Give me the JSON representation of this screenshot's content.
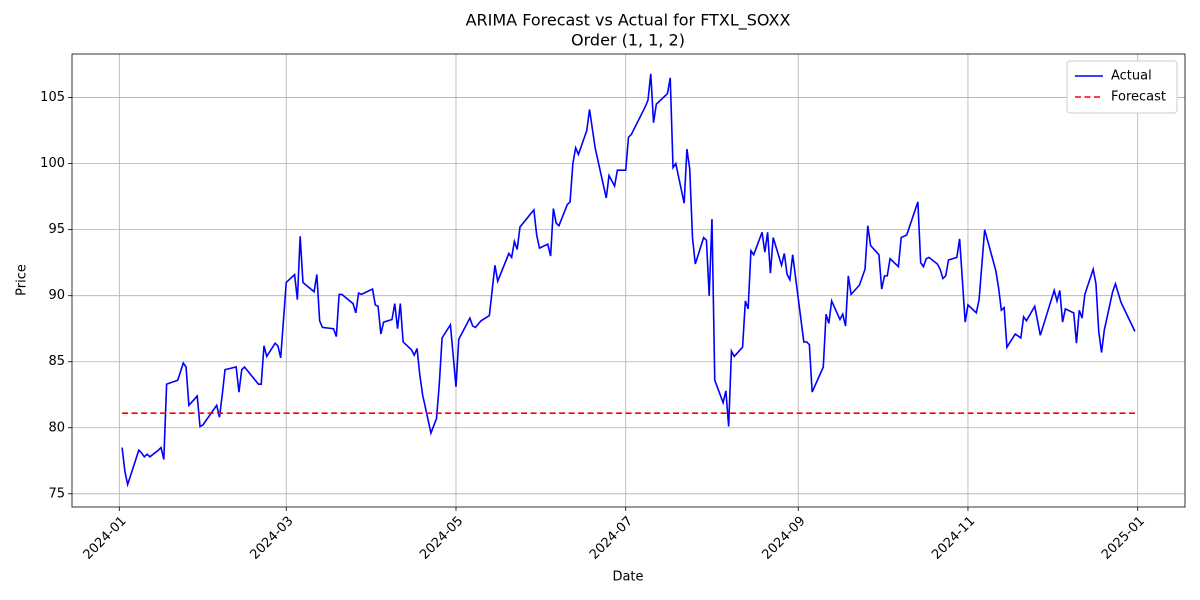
{
  "chart_data": {
    "type": "line",
    "title": "ARIMA Forecast vs Actual for FTXL_SOXX",
    "subtitle": "Order (1, 1, 2)",
    "x_label": "Date",
    "y_label": "Price",
    "xlim": [
      "2023-12-15",
      "2025-01-18"
    ],
    "xticks": [
      {
        "value": "2024-01-01",
        "label": "2024-01"
      },
      {
        "value": "2024-03-01",
        "label": "2024-03"
      },
      {
        "value": "2024-05-01",
        "label": "2024-05"
      },
      {
        "value": "2024-07-01",
        "label": "2024-07"
      },
      {
        "value": "2024-09-01",
        "label": "2024-09"
      },
      {
        "value": "2024-11-01",
        "label": "2024-11"
      },
      {
        "value": "2025-01-01",
        "label": "2025-01"
      }
    ],
    "ylim": [
      74.0,
      108.3
    ],
    "yticks": [
      75,
      80,
      85,
      90,
      95,
      100,
      105
    ],
    "grid": true,
    "legend": "upper right",
    "series": [
      {
        "name": "Actual",
        "color": "#0000ff",
        "dash": false,
        "x": [
          "2024-01-02",
          "2024-01-03",
          "2024-01-04",
          "2024-01-08",
          "2024-01-09",
          "2024-01-10",
          "2024-01-11",
          "2024-01-12",
          "2024-01-15",
          "2024-01-16",
          "2024-01-17",
          "2024-01-18",
          "2024-01-22",
          "2024-01-24",
          "2024-01-25",
          "2024-01-26",
          "2024-01-29",
          "2024-01-30",
          "2024-01-31",
          "2024-02-05",
          "2024-02-06",
          "2024-02-07",
          "2024-02-08",
          "2024-02-12",
          "2024-02-13",
          "2024-02-14",
          "2024-02-15",
          "2024-02-20",
          "2024-02-21",
          "2024-02-22",
          "2024-02-23",
          "2024-02-26",
          "2024-02-27",
          "2024-02-28",
          "2024-03-01",
          "2024-03-04",
          "2024-03-05",
          "2024-03-06",
          "2024-03-07",
          "2024-03-11",
          "2024-03-12",
          "2024-03-13",
          "2024-03-14",
          "2024-03-18",
          "2024-03-19",
          "2024-03-20",
          "2024-03-21",
          "2024-03-25",
          "2024-03-26",
          "2024-03-27",
          "2024-03-28",
          "2024-04-01",
          "2024-04-02",
          "2024-04-03",
          "2024-04-04",
          "2024-04-05",
          "2024-04-08",
          "2024-04-09",
          "2024-04-10",
          "2024-04-11",
          "2024-04-12",
          "2024-04-15",
          "2024-04-16",
          "2024-04-17",
          "2024-04-18",
          "2024-04-19",
          "2024-04-22",
          "2024-04-24",
          "2024-04-25",
          "2024-04-26",
          "2024-04-29",
          "2024-05-01",
          "2024-05-02",
          "2024-05-06",
          "2024-05-07",
          "2024-05-08",
          "2024-05-10",
          "2024-05-13",
          "2024-05-15",
          "2024-05-16",
          "2024-05-20",
          "2024-05-21",
          "2024-05-22",
          "2024-05-23",
          "2024-05-24",
          "2024-05-29",
          "2024-05-30",
          "2024-05-31",
          "2024-06-03",
          "2024-06-04",
          "2024-06-05",
          "2024-06-06",
          "2024-06-07",
          "2024-06-10",
          "2024-06-11",
          "2024-06-12",
          "2024-06-13",
          "2024-06-14",
          "2024-06-17",
          "2024-06-18",
          "2024-06-20",
          "2024-06-24",
          "2024-06-25",
          "2024-06-27",
          "2024-06-28",
          "2024-07-01",
          "2024-07-02",
          "2024-07-03",
          "2024-07-08",
          "2024-07-09",
          "2024-07-10",
          "2024-07-11",
          "2024-07-12",
          "2024-07-15",
          "2024-07-16",
          "2024-07-17",
          "2024-07-18",
          "2024-07-19",
          "2024-07-22",
          "2024-07-23",
          "2024-07-24",
          "2024-07-25",
          "2024-07-26",
          "2024-07-29",
          "2024-07-30",
          "2024-07-31",
          "2024-08-01",
          "2024-08-02",
          "2024-08-05",
          "2024-08-06",
          "2024-08-07",
          "2024-08-08",
          "2024-08-09",
          "2024-08-12",
          "2024-08-13",
          "2024-08-14",
          "2024-08-15",
          "2024-08-16",
          "2024-08-19",
          "2024-08-20",
          "2024-08-21",
          "2024-08-22",
          "2024-08-23",
          "2024-08-26",
          "2024-08-27",
          "2024-08-28",
          "2024-08-29",
          "2024-08-30",
          "2024-09-03",
          "2024-09-04",
          "2024-09-05",
          "2024-09-06",
          "2024-09-10",
          "2024-09-11",
          "2024-09-12",
          "2024-09-13",
          "2024-09-16",
          "2024-09-17",
          "2024-09-18",
          "2024-09-19",
          "2024-09-20",
          "2024-09-23",
          "2024-09-25",
          "2024-09-26",
          "2024-09-27",
          "2024-09-30",
          "2024-10-01",
          "2024-10-02",
          "2024-10-03",
          "2024-10-04",
          "2024-10-07",
          "2024-10-08",
          "2024-10-10",
          "2024-10-14",
          "2024-10-15",
          "2024-10-16",
          "2024-10-17",
          "2024-10-18",
          "2024-10-21",
          "2024-10-22",
          "2024-10-23",
          "2024-10-24",
          "2024-10-25",
          "2024-10-28",
          "2024-10-29",
          "2024-10-31",
          "2024-11-01",
          "2024-11-04",
          "2024-11-05",
          "2024-11-07",
          "2024-11-11",
          "2024-11-12",
          "2024-11-13",
          "2024-11-14",
          "2024-11-15",
          "2024-11-18",
          "2024-11-20",
          "2024-11-21",
          "2024-11-22",
          "2024-11-25",
          "2024-11-27",
          "2024-12-02",
          "2024-12-03",
          "2024-12-04",
          "2024-12-05",
          "2024-12-06",
          "2024-12-09",
          "2024-12-10",
          "2024-12-11",
          "2024-12-12",
          "2024-12-13",
          "2024-12-16",
          "2024-12-17",
          "2024-12-18",
          "2024-12-19",
          "2024-12-20",
          "2024-12-23",
          "2024-12-24",
          "2024-12-26",
          "2024-12-31"
        ],
        "values": [
          78.5,
          76.7,
          75.7,
          78.3,
          78.1,
          77.8,
          78.0,
          77.8,
          78.3,
          78.5,
          77.6,
          83.3,
          83.6,
          84.9,
          84.6,
          81.7,
          82.4,
          80.1,
          80.2,
          81.7,
          80.8,
          82.5,
          84.4,
          84.6,
          82.7,
          84.4,
          84.6,
          83.3,
          83.3,
          86.2,
          85.4,
          86.4,
          86.2,
          85.3,
          91.0,
          91.6,
          89.7,
          94.5,
          91.0,
          90.3,
          91.6,
          88.1,
          87.6,
          87.5,
          86.9,
          90.1,
          90.1,
          89.4,
          88.7,
          90.2,
          90.1,
          90.5,
          89.3,
          89.2,
          87.1,
          88.0,
          88.2,
          89.4,
          87.5,
          89.4,
          86.5,
          85.9,
          85.5,
          86.0,
          84.0,
          82.5,
          79.6,
          80.7,
          83.3,
          86.8,
          87.8,
          83.1,
          86.7,
          88.3,
          87.7,
          87.6,
          88.1,
          88.5,
          92.3,
          91.1,
          93.2,
          92.9,
          94.1,
          93.5,
          95.2,
          96.5,
          94.6,
          93.6,
          93.9,
          93.0,
          96.6,
          95.5,
          95.3,
          96.9,
          97.1,
          100.0,
          101.2,
          100.7,
          102.5,
          104.1,
          101.2,
          97.4,
          99.1,
          98.3,
          99.5,
          99.5,
          102.0,
          102.2,
          104.3,
          104.8,
          106.8,
          103.1,
          104.5,
          105.1,
          105.3,
          106.5,
          99.7,
          100.0,
          97.0,
          101.1,
          99.6,
          94.4,
          92.4,
          94.4,
          94.2,
          90.0,
          95.8,
          83.6,
          81.9,
          82.8,
          80.1,
          85.8,
          85.4,
          86.1,
          89.6,
          89.0,
          93.4,
          93.1,
          94.8,
          93.3,
          94.8,
          91.7,
          94.4,
          92.3,
          93.2,
          91.6,
          91.2,
          93.1,
          86.5,
          86.5,
          86.3,
          82.7,
          84.6,
          88.6,
          87.9,
          89.6,
          88.2,
          88.6,
          87.7,
          91.5,
          90.1,
          90.8,
          92.0,
          95.3,
          93.8,
          93.1,
          90.5,
          91.5,
          91.5,
          92.8,
          92.2,
          94.4,
          94.6,
          97.1,
          92.5,
          92.2,
          92.8,
          92.9,
          92.4,
          92.0,
          91.3,
          91.5,
          92.7,
          92.9,
          94.3,
          88.0,
          89.3,
          88.7,
          89.7,
          95.0,
          91.9,
          90.6,
          88.9,
          89.1,
          86.1,
          87.1,
          86.8,
          88.4,
          88.1,
          89.2,
          87.0,
          90.4,
          89.6,
          90.4,
          88.0,
          89.0,
          88.7,
          86.4,
          88.9,
          88.3,
          90.1,
          92.0,
          90.9,
          87.3,
          85.7,
          87.4,
          90.3,
          90.9,
          89.5,
          87.3
        ]
      },
      {
        "name": "Forecast",
        "color": "#ff0000",
        "dash": true,
        "x": [
          "2024-01-02",
          "2024-12-31"
        ],
        "values": [
          81.1,
          81.1
        ]
      }
    ]
  }
}
